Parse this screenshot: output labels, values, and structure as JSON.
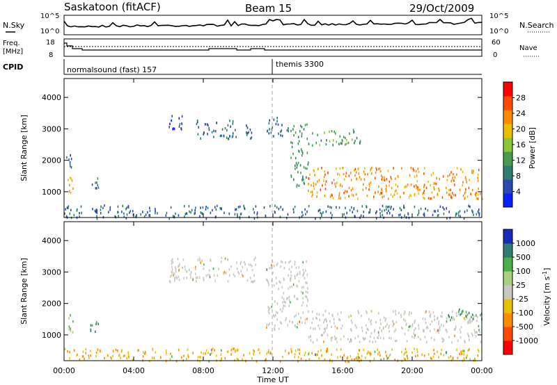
{
  "header": {
    "station": "Saskatoon (fitACF)",
    "beam": "Beam 15",
    "date": "29/Oct/2009"
  },
  "noise_panel": {
    "left_label": "N.Sky",
    "right_label": "N.Search",
    "ticks_left": [
      "10^5",
      "10^0"
    ],
    "ticks_right": [
      "10^5",
      "10^0"
    ]
  },
  "freq_panel": {
    "left_label_1": "Freq.",
    "left_label_2": "[MHz]",
    "right_label": "Nave",
    "ticks_left": [
      "18",
      "8"
    ],
    "ticks_right": [
      "60",
      "0"
    ]
  },
  "cpid": {
    "label": "CPID",
    "modes": [
      {
        "name": "normalsound (fast) 157",
        "start_hour": 0
      },
      {
        "name": "themis 3300",
        "start_hour": 12
      }
    ]
  },
  "axes": {
    "ylabel": "Slant Range [km]",
    "xlabel": "Time UT",
    "x_ticks": [
      "00:00",
      "04:00",
      "08:00",
      "12:00",
      "16:00",
      "20:00",
      "00:00"
    ],
    "y_ticks": [
      "1000",
      "2000",
      "3000",
      "4000"
    ],
    "xlim_hours": [
      0,
      24
    ],
    "ylim_km": [
      180,
      4600
    ]
  },
  "power_colorbar": {
    "label": "Power [dB]",
    "ticks": [
      "4",
      "8",
      "12",
      "16",
      "20",
      "24",
      "28"
    ],
    "colors": [
      "#0a1eff",
      "#2a4ab0",
      "#2e7d6e",
      "#4a9a50",
      "#8cc63a",
      "#e8c000",
      "#ff8c00",
      "#ff4a00",
      "#ff0000"
    ]
  },
  "velocity_colorbar": {
    "label": "Velocity [m s^-1]",
    "ticks": [
      "1000",
      "500",
      "100",
      "25",
      "-25",
      "-100",
      "-500",
      "-1000"
    ],
    "colors": [
      "#1a2ab8",
      "#2e7d6e",
      "#4ab04a",
      "#a8d080",
      "#c8c8c0",
      "#e8c000",
      "#ff8c00",
      "#ff4a00",
      "#ff0000"
    ]
  },
  "chart_data": [
    {
      "type": "heatmap",
      "title": "Power",
      "xlabel": "Time UT",
      "ylabel": "Slant Range [km]",
      "x_range_hours": [
        0,
        24
      ],
      "y_range_km": [
        180,
        4600
      ],
      "echo_regions": [
        {
          "t": [
            0.2,
            0.5
          ],
          "range_km": [
            1000,
            1700
          ],
          "power_db": 24
        },
        {
          "t": [
            0.1,
            0.4
          ],
          "range_km": [
            1800,
            2300
          ],
          "power_db": 6
        },
        {
          "t": [
            1.5,
            2.0
          ],
          "range_km": [
            1100,
            1500
          ],
          "power_db": 10
        },
        {
          "t": [
            6.0,
            7.0
          ],
          "range_km": [
            3000,
            3500
          ],
          "power_db": 6
        },
        {
          "t": [
            7.5,
            10.0
          ],
          "range_km": [
            2700,
            3300
          ],
          "power_db": 7
        },
        {
          "t": [
            10.3,
            11.0
          ],
          "range_km": [
            2700,
            3200
          ],
          "power_db": 7
        },
        {
          "t": [
            11.6,
            13.0
          ],
          "range_km": [
            2800,
            3400
          ],
          "power_db": 8
        },
        {
          "t": [
            13.0,
            14.0
          ],
          "range_km": [
            1200,
            3200
          ],
          "power_db": 12
        },
        {
          "t": [
            14.0,
            24.0
          ],
          "range_km": [
            800,
            1800
          ],
          "power_db": 26
        },
        {
          "t": [
            14.0,
            17.0
          ],
          "range_km": [
            2500,
            3000
          ],
          "power_db": 14
        },
        {
          "t": [
            0.0,
            24.0
          ],
          "range_km": [
            180,
            600
          ],
          "power_db": 8
        }
      ]
    },
    {
      "type": "heatmap",
      "title": "Velocity",
      "xlabel": "Time UT",
      "ylabel": "Slant Range [km]",
      "x_range_hours": [
        0,
        24
      ],
      "y_range_km": [
        180,
        4600
      ],
      "echo_regions": [
        {
          "t": [
            0.2,
            0.5
          ],
          "range_km": [
            1000,
            1700
          ],
          "velocity_ms": 100
        },
        {
          "t": [
            1.5,
            2.0
          ],
          "range_km": [
            1100,
            1500
          ],
          "velocity_ms": 500
        },
        {
          "t": [
            6.0,
            11.0
          ],
          "range_km": [
            2700,
            3500
          ],
          "velocity_ms": 0
        },
        {
          "t": [
            11.6,
            14.0
          ],
          "range_km": [
            1200,
            3400
          ],
          "velocity_ms": 0
        },
        {
          "t": [
            14.0,
            24.0
          ],
          "range_km": [
            800,
            1800
          ],
          "velocity_ms": 0
        },
        {
          "t": [
            22.0,
            24.0
          ],
          "range_km": [
            1500,
            1900
          ],
          "velocity_ms": 500
        },
        {
          "t": [
            0.0,
            24.0
          ],
          "range_km": [
            180,
            600
          ],
          "velocity_ms": -100
        }
      ]
    }
  ]
}
